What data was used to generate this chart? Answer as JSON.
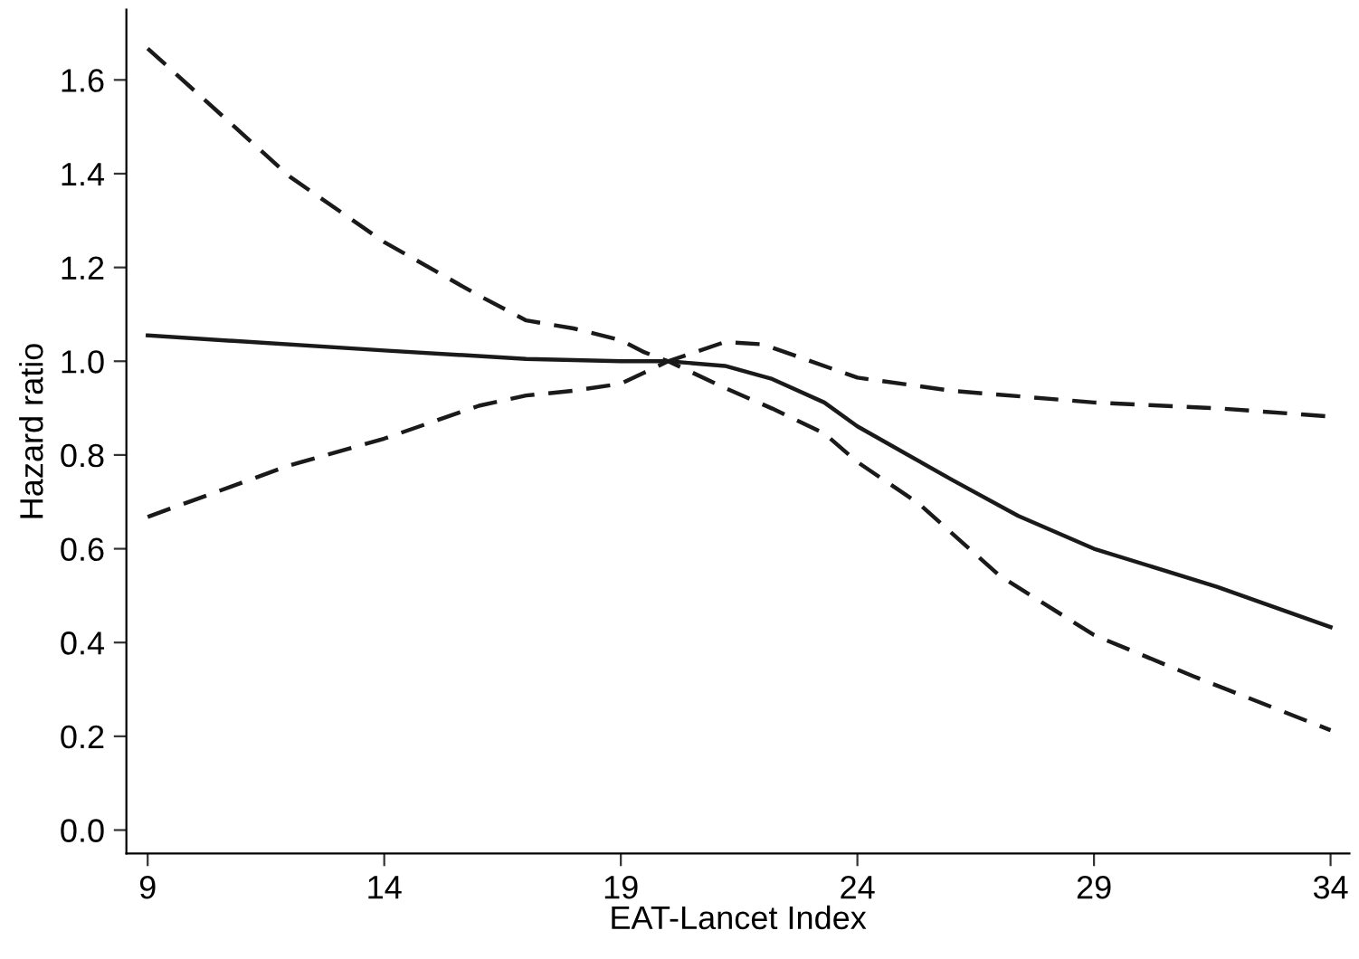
{
  "chart_data": {
    "type": "line",
    "xlabel": "EAT-Lancet Index",
    "ylabel": "Hazard ratio",
    "xlim": [
      8.55,
      34.4
    ],
    "ylim": [
      -0.05,
      1.75
    ],
    "xticks": [
      9,
      14,
      19,
      24,
      29,
      34
    ],
    "yticks": [
      {
        "value": 0,
        "label": "0.0"
      },
      0.2,
      0.4,
      0.6,
      0.8,
      {
        "value": 1,
        "label": "1.0"
      },
      1.2,
      1.4,
      1.6
    ],
    "grid": false,
    "legend": false,
    "marker": "none",
    "series": [
      {
        "color": "#1a1a1a",
        "line_style": "solid",
        "x": [
          9,
          14,
          17,
          19,
          20,
          21.2,
          22.2,
          23.3,
          24,
          26,
          27.4,
          29,
          31.6,
          34
        ],
        "values": [
          1.055,
          1.023,
          1.005,
          1.0,
          1.0,
          0.99,
          0.962,
          0.912,
          0.861,
          0.747,
          0.67,
          0.6,
          0.519,
          0.433
        ]
      },
      {
        "color": "#1a1a1a",
        "line_style": "dashed",
        "x": [
          9,
          12,
          14,
          16,
          17,
          18,
          19,
          19.5,
          20,
          21.2,
          22,
          24,
          26,
          29,
          31.7,
          34
        ],
        "values": [
          1.667,
          1.394,
          1.254,
          1.14,
          1.087,
          1.07,
          1.045,
          1.019,
          1.0,
          1.041,
          1.036,
          0.965,
          0.937,
          0.912,
          0.899,
          0.882
        ]
      },
      {
        "color": "#1a1a1a",
        "line_style": "dashed",
        "x": [
          9,
          12,
          14,
          16,
          17,
          18,
          19,
          19.5,
          20,
          21.2,
          22.2,
          23.3,
          24,
          25.3,
          27,
          29,
          31.1,
          34
        ],
        "values": [
          0.668,
          0.778,
          0.835,
          0.905,
          0.927,
          0.937,
          0.952,
          0.976,
          1.0,
          0.943,
          0.899,
          0.846,
          0.785,
          0.696,
          0.543,
          0.416,
          0.328,
          0.213
        ]
      }
    ]
  }
}
